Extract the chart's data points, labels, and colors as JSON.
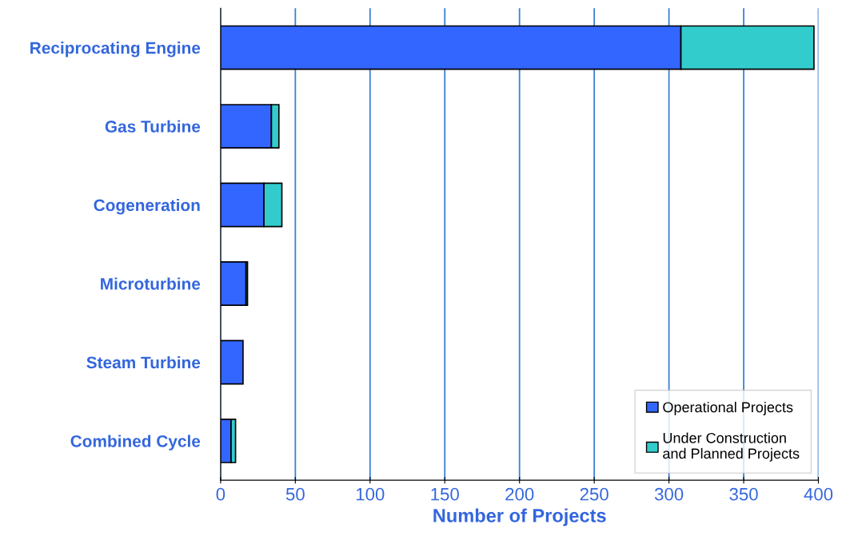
{
  "chart_data": {
    "type": "bar",
    "orientation": "horizontal",
    "stacked": true,
    "xlabel": "Number of Projects",
    "categories": [
      "Reciprocating Engine",
      "Gas Turbine",
      "Cogeneration",
      "Microturbine",
      "Steam Turbine",
      "Combined Cycle"
    ],
    "series": [
      {
        "name": "Operational Projects",
        "color": "#3366ff",
        "values": [
          308,
          34,
          29,
          17,
          15,
          7
        ]
      },
      {
        "name": "Under Construction\nand Planned Projects",
        "color": "#33cccc",
        "values": [
          89,
          5,
          12,
          1,
          null,
          3
        ]
      }
    ],
    "xlim": [
      0,
      400
    ],
    "xticks": [
      0,
      50,
      100,
      150,
      200,
      250,
      300,
      350,
      400
    ],
    "grid": "x",
    "legend": "bottom right"
  }
}
